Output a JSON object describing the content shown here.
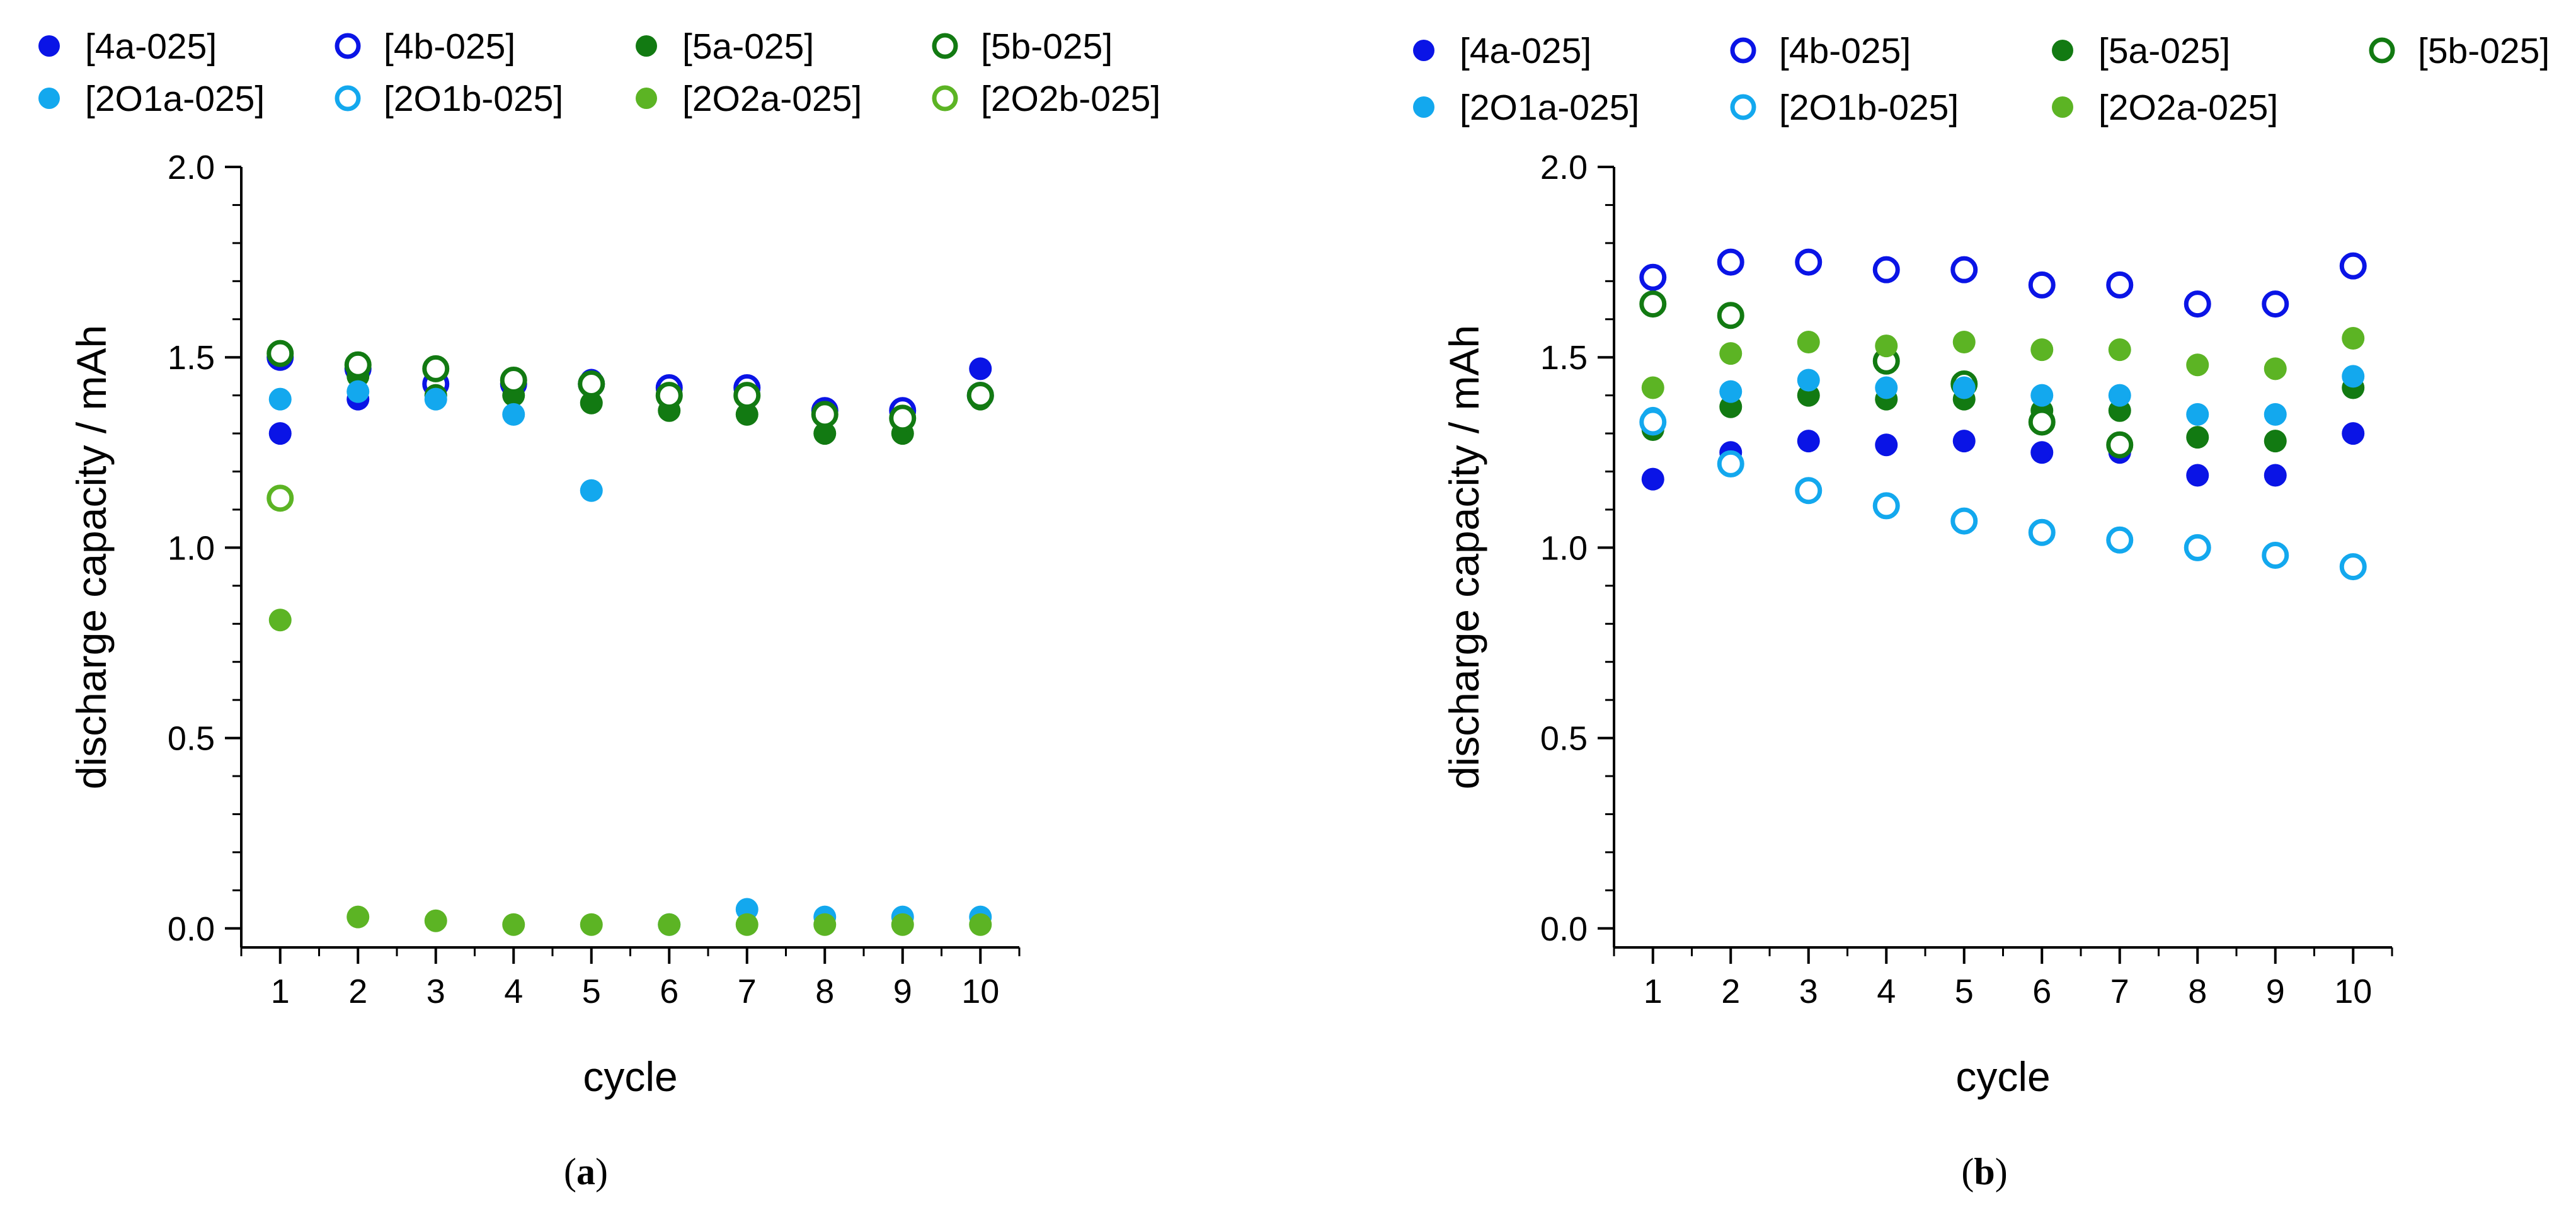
{
  "figure": {
    "panels": [
      {
        "id": "a",
        "caption_open": "(",
        "caption_letter": "a",
        "caption_close": ")",
        "legend_columns": 4
      },
      {
        "id": "b",
        "caption_open": "(",
        "caption_letter": "b",
        "caption_close": ")",
        "legend_columns": 4
      }
    ]
  },
  "chart_data": [
    {
      "type": "scatter",
      "panel": "a",
      "title": "",
      "xlabel": "cycle",
      "ylabel": "discharge capacity / mAh",
      "xlim": [
        0.5,
        10.5
      ],
      "ylim": [
        -0.05,
        2.0
      ],
      "x_ticks": [
        1,
        2,
        3,
        4,
        5,
        6,
        7,
        8,
        9,
        10
      ],
      "y_ticks": [
        0.0,
        0.5,
        1.0,
        1.5,
        2.0
      ],
      "y_tick_labels": [
        "0.0",
        "0.5",
        "1.0",
        "1.5",
        "2.0"
      ],
      "grid": false,
      "legend_position": "top",
      "x": [
        1,
        2,
        3,
        4,
        5,
        6,
        7,
        8,
        9,
        10
      ],
      "series": [
        {
          "name": "[4a-025]",
          "color": "#0a14e6",
          "marker": "filled",
          "values": [
            1.3,
            1.39,
            1.42,
            1.42,
            1.44,
            1.41,
            1.41,
            1.36,
            1.35,
            1.47
          ]
        },
        {
          "name": "[4b-025]",
          "color": "#0a14e6",
          "marker": "open",
          "values": [
            1.5,
            1.47,
            1.43,
            1.43,
            1.43,
            1.42,
            1.42,
            1.36,
            1.36,
            1.4
          ]
        },
        {
          "name": "[5a-025]",
          "color": "#127a12",
          "marker": "filled",
          "values": [
            1.51,
            1.45,
            1.4,
            1.4,
            1.38,
            1.36,
            1.35,
            1.3,
            1.3,
            1.39
          ]
        },
        {
          "name": "[5b-025]",
          "color": "#127a12",
          "marker": "open",
          "values": [
            1.51,
            1.48,
            1.47,
            1.44,
            1.43,
            1.4,
            1.4,
            1.35,
            1.34,
            1.4
          ]
        },
        {
          "name": "[2O1a-025]",
          "color": "#13a8ee",
          "marker": "filled",
          "values": [
            1.39,
            1.41,
            1.39,
            1.35,
            1.15,
            0.01,
            0.05,
            0.03,
            0.03,
            0.03
          ]
        },
        {
          "name": "[2O1b-025]",
          "color": "#13a8ee",
          "marker": "open",
          "values": []
        },
        {
          "name": "[2O2a-025]",
          "color": "#5cb424",
          "marker": "filled",
          "values": [
            0.81,
            0.03,
            0.02,
            0.01,
            0.01,
            0.01,
            0.01,
            0.01,
            0.01,
            0.01
          ]
        },
        {
          "name": "[2O2b-025]",
          "color": "#5cb424",
          "marker": "open",
          "values": [
            1.13,
            null,
            null,
            null,
            null,
            null,
            null,
            null,
            null,
            null
          ]
        }
      ]
    },
    {
      "type": "scatter",
      "panel": "b",
      "title": "",
      "xlabel": "cycle",
      "ylabel": "discharge capacity / mAh",
      "xlim": [
        0.5,
        10.5
      ],
      "ylim": [
        -0.05,
        2.0
      ],
      "x_ticks": [
        1,
        2,
        3,
        4,
        5,
        6,
        7,
        8,
        9,
        10
      ],
      "y_ticks": [
        0.0,
        0.5,
        1.0,
        1.5,
        2.0
      ],
      "y_tick_labels": [
        "0.0",
        "0.5",
        "1.0",
        "1.5",
        "2.0"
      ],
      "grid": false,
      "legend_position": "top",
      "x": [
        1,
        2,
        3,
        4,
        5,
        6,
        7,
        8,
        9,
        10
      ],
      "series": [
        {
          "name": "[4a-025]",
          "color": "#0a14e6",
          "marker": "filled",
          "values": [
            1.18,
            1.25,
            1.28,
            1.27,
            1.28,
            1.25,
            1.25,
            1.19,
            1.19,
            1.3
          ]
        },
        {
          "name": "[4b-025]",
          "color": "#0a14e6",
          "marker": "open",
          "values": [
            1.71,
            1.75,
            1.75,
            1.73,
            1.73,
            1.69,
            1.69,
            1.64,
            1.64,
            1.74
          ]
        },
        {
          "name": "[5a-025]",
          "color": "#127a12",
          "marker": "filled",
          "values": [
            1.31,
            1.37,
            1.4,
            1.39,
            1.39,
            1.36,
            1.36,
            1.29,
            1.28,
            1.42
          ]
        },
        {
          "name": "[5b-025]",
          "color": "#127a12",
          "marker": "open",
          "values": [
            1.64,
            1.61,
            null,
            1.49,
            1.43,
            1.33,
            1.27,
            null,
            null,
            null
          ]
        },
        {
          "name": "[2O1a-025]",
          "color": "#13a8ee",
          "marker": "filled",
          "values": [
            1.34,
            1.41,
            1.44,
            1.42,
            1.42,
            1.4,
            1.4,
            1.35,
            1.35,
            1.45
          ]
        },
        {
          "name": "[2O1b-025]",
          "color": "#13a8ee",
          "marker": "open",
          "values": [
            1.33,
            1.22,
            1.15,
            1.11,
            1.07,
            1.04,
            1.02,
            1.0,
            0.98,
            0.95
          ]
        },
        {
          "name": "[2O2a-025]",
          "color": "#5cb424",
          "marker": "filled",
          "values": [
            1.42,
            1.51,
            1.54,
            1.53,
            1.54,
            1.52,
            1.52,
            1.48,
            1.47,
            1.55
          ]
        }
      ]
    }
  ]
}
